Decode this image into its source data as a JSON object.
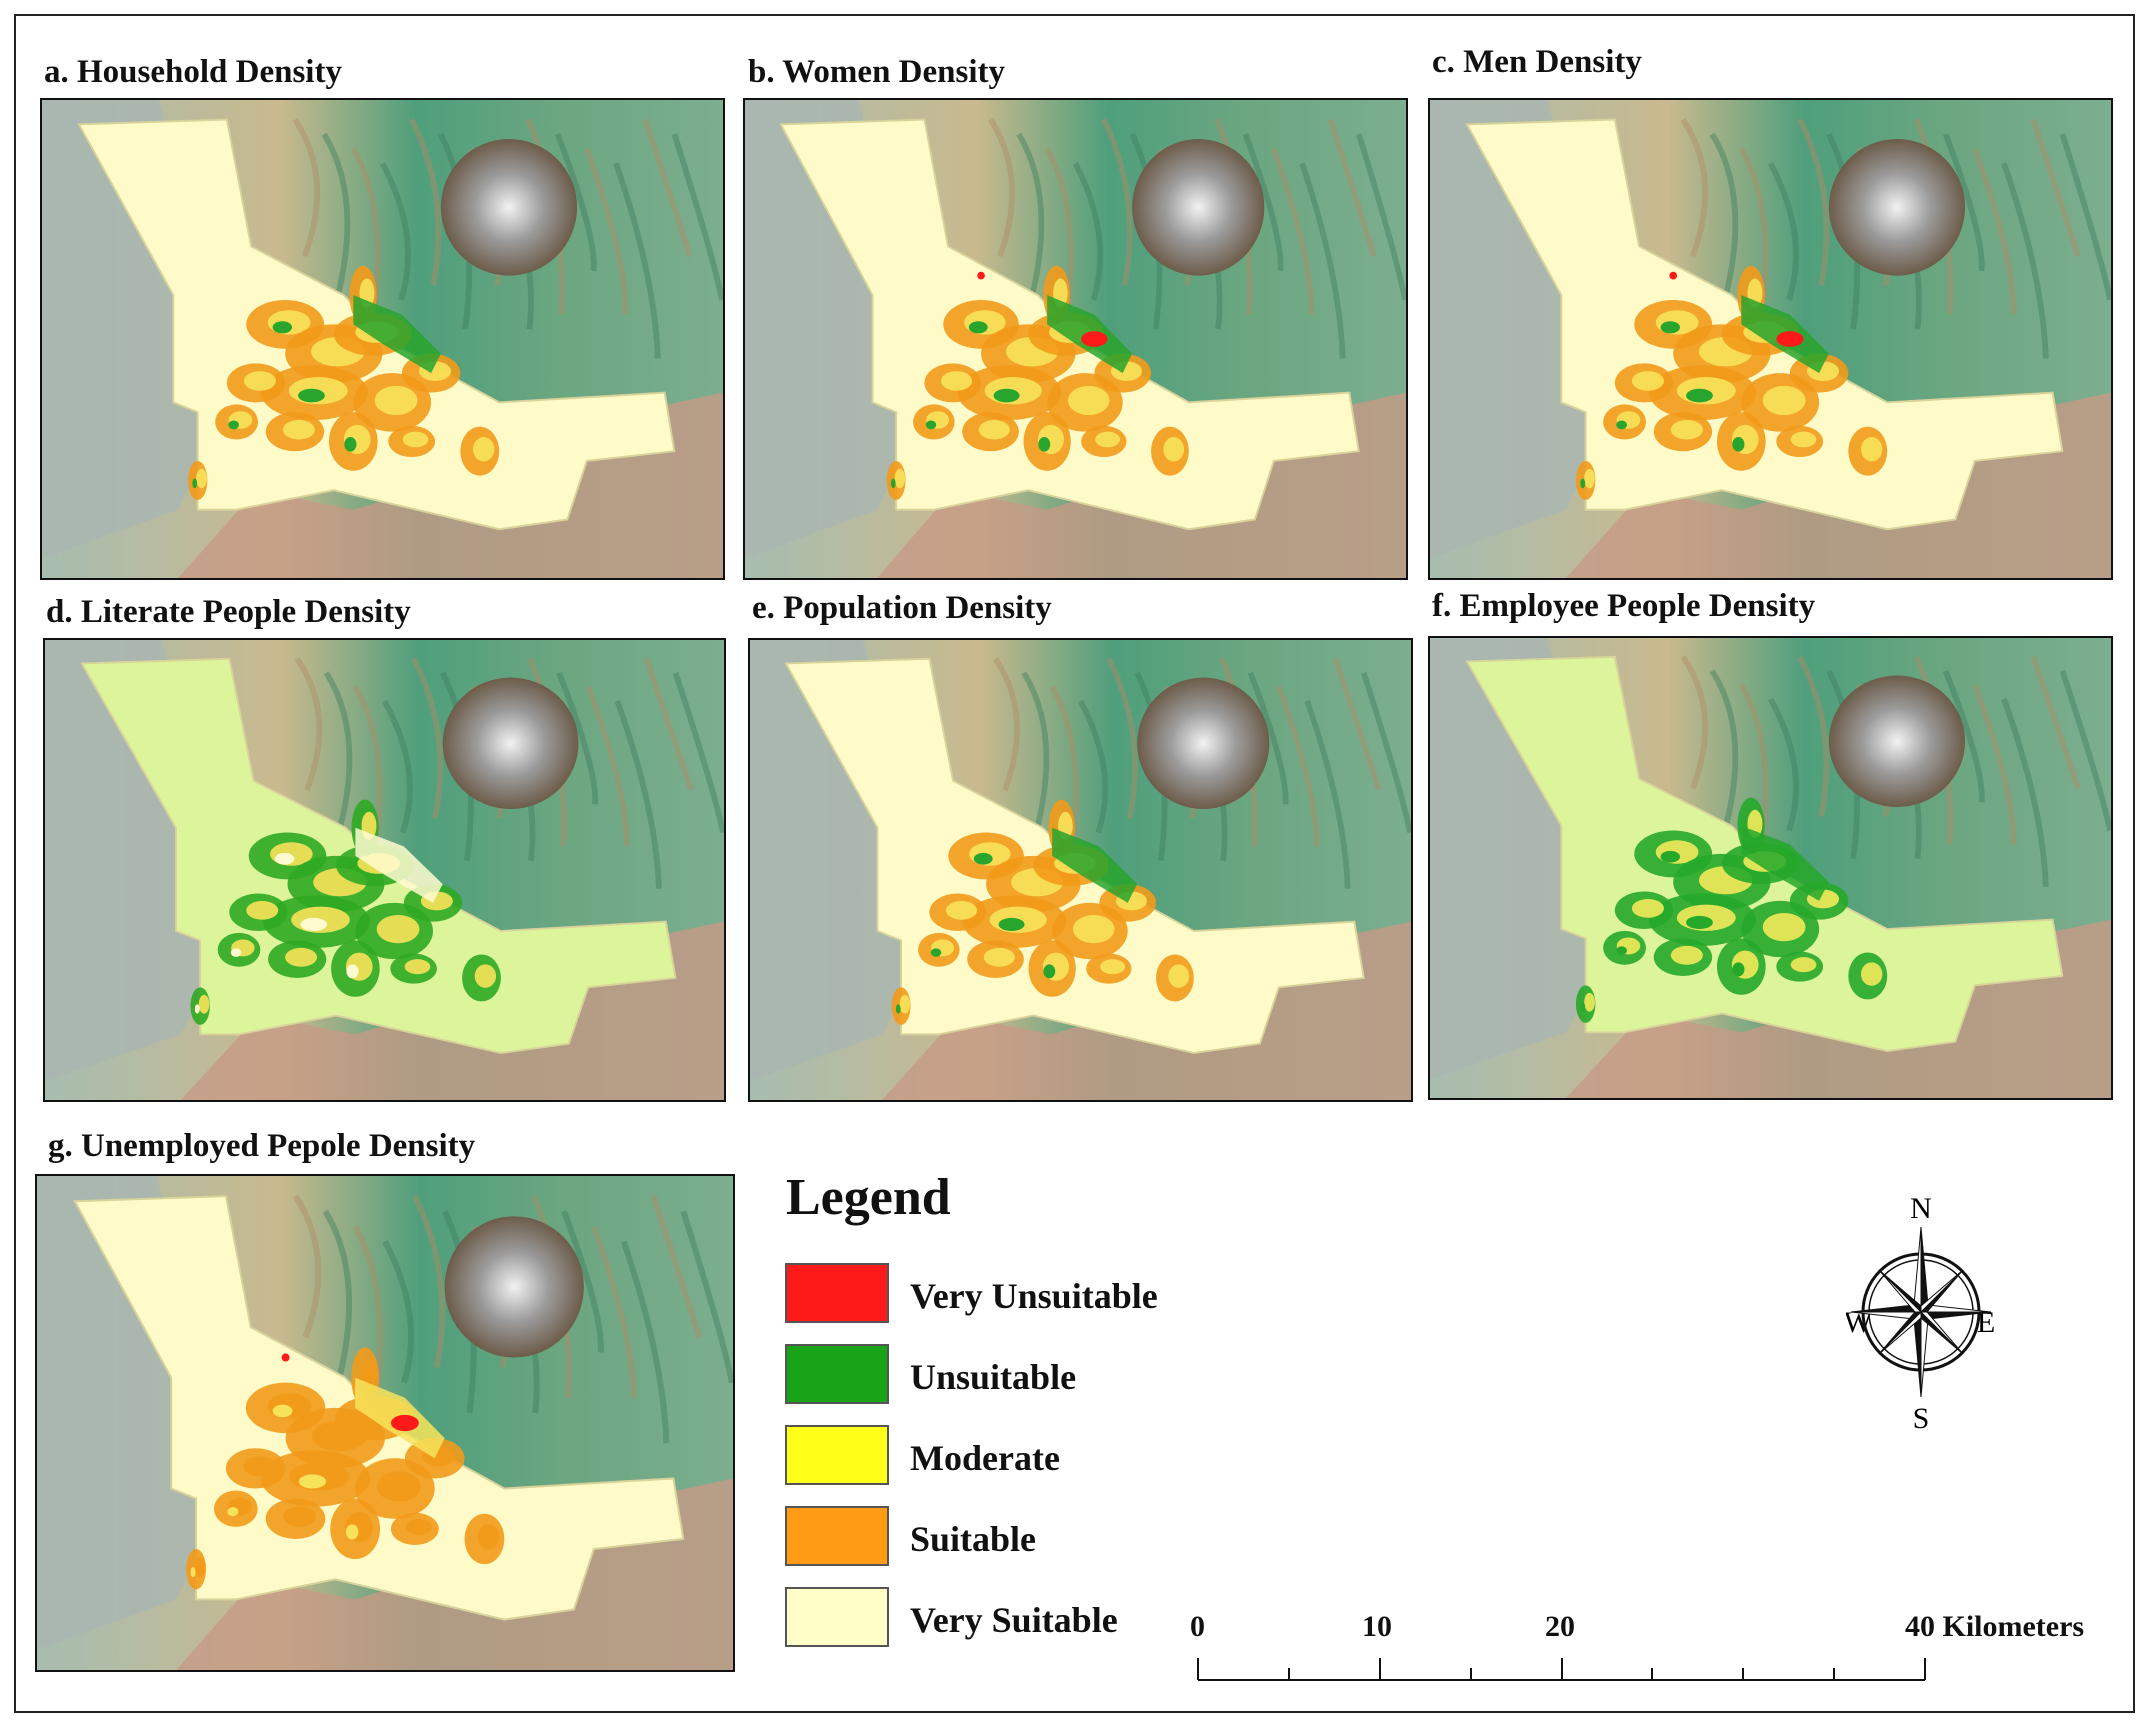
{
  "panels": [
    {
      "id": "a",
      "title": "a. Household Density",
      "palette": [
        "#f29a1a",
        "#f7e35a",
        "#28a52d"
      ],
      "veryUnsuitableShown": false
    },
    {
      "id": "b",
      "title": "b. Women Density",
      "palette": [
        "#f29a1a",
        "#f7e35a",
        "#28a52d"
      ],
      "veryUnsuitableShown": true
    },
    {
      "id": "c",
      "title": "c. Men Density",
      "palette": [
        "#f29a1a",
        "#f7e35a",
        "#28a52d"
      ],
      "veryUnsuitableShown": true
    },
    {
      "id": "d",
      "title": "d. Literate People Density",
      "palette": [
        "#2faa22",
        "#f7e35a",
        "#fffbd0"
      ],
      "veryUnsuitableShown": false
    },
    {
      "id": "e",
      "title": "e. Population Density",
      "palette": [
        "#f29a1a",
        "#f7e35a",
        "#28a52d"
      ],
      "veryUnsuitableShown": false
    },
    {
      "id": "f",
      "title": "f.  Employee People Density",
      "palette": [
        "#26a82a",
        "#f2ea5a",
        "#26a82a"
      ],
      "veryUnsuitableShown": false
    },
    {
      "id": "g",
      "title": "g. Unemployed Pepole Density",
      "palette": [
        "#f29a1a",
        "#f29a1a",
        "#f7e35a"
      ],
      "veryUnsuitableShown": true
    }
  ],
  "legend": {
    "title": "Legend",
    "items": [
      {
        "label": "Very Unsuitable",
        "color": "#ff1a1a"
      },
      {
        "label": "Unsuitable",
        "color": "#19a319"
      },
      {
        "label": "Moderate",
        "color": "#ffff1a"
      },
      {
        "label": "Suitable",
        "color": "#ff9b14"
      },
      {
        "label": "Very Suitable",
        "color": "#fffdc8"
      }
    ]
  },
  "north_arrow": {
    "n": "N",
    "s": "S",
    "e": "E",
    "w": "W"
  },
  "scale_bar": {
    "ticks": [
      "0",
      "10",
      "20"
    ],
    "end_label": "40 Kilometers"
  },
  "colors": {
    "study_area_default": "#fffbc8",
    "study_area_literate": "#dcf59a",
    "study_area_employee": "#dcf59a"
  }
}
